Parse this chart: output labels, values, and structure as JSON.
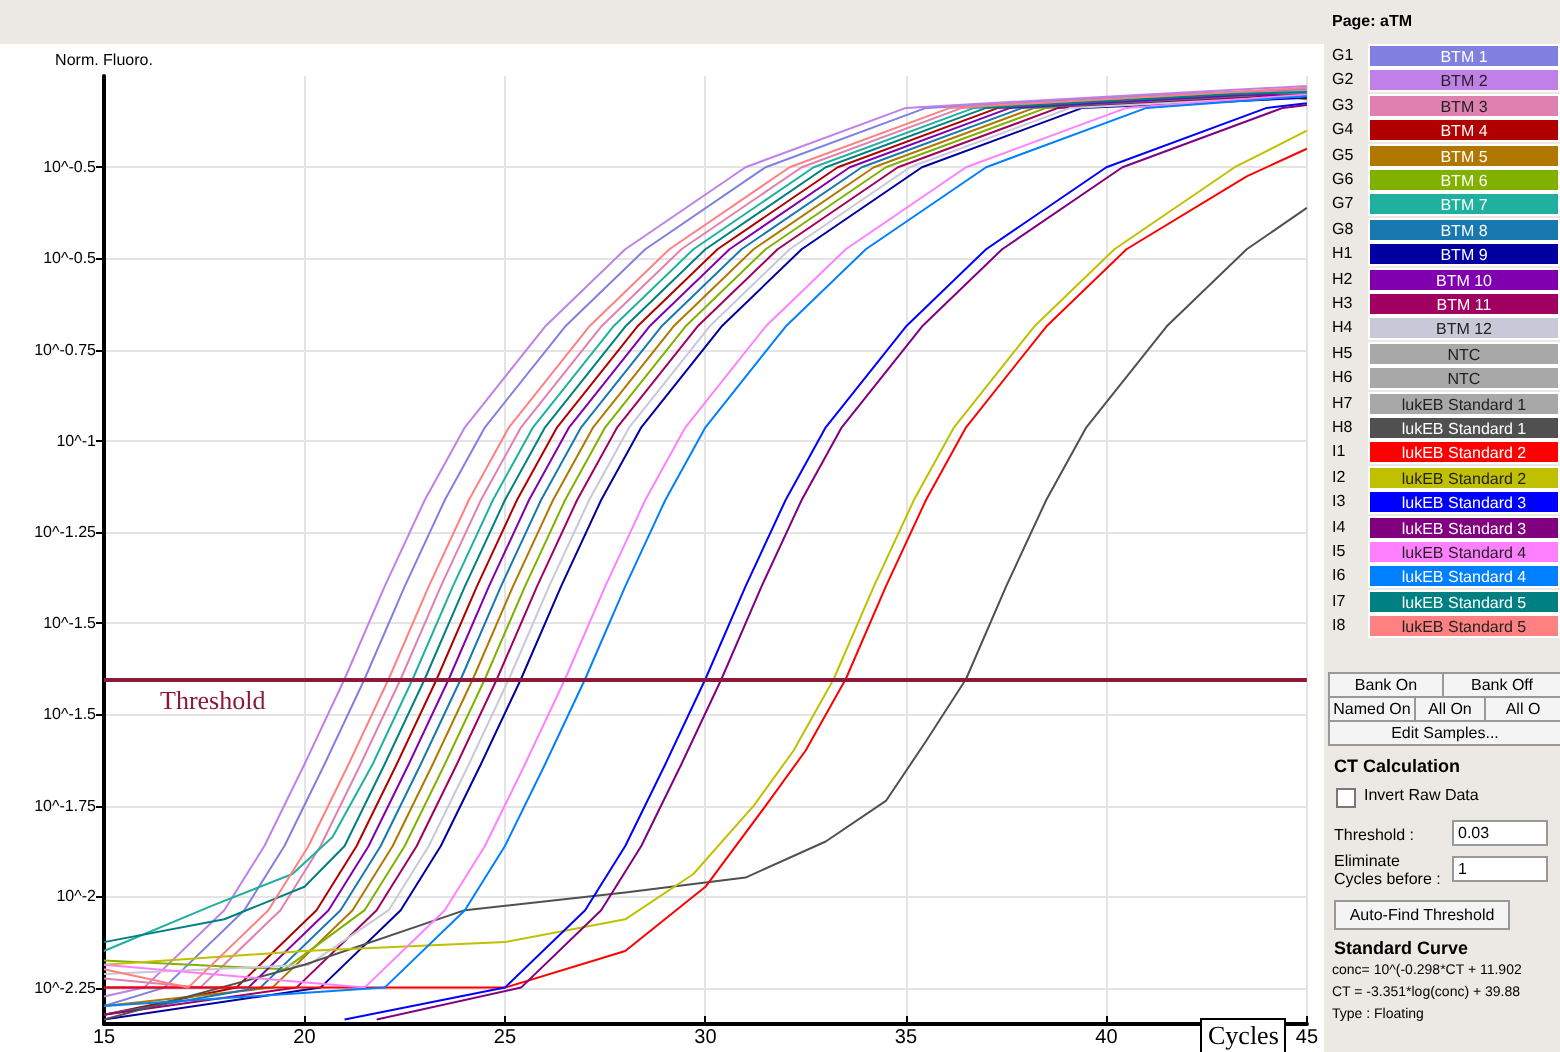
{
  "chart_data": {
    "type": "line",
    "ylabel": "Norm. Fluoro.",
    "xlabel": "Cycles",
    "xlim": [
      15,
      45
    ],
    "xticks": [
      15,
      20,
      25,
      30,
      35,
      40,
      45
    ],
    "ylim": [
      0.00525,
      0.631
    ],
    "log": true,
    "yticks": [
      {
        "value": 0.00631,
        "label": "10^-2.25"
      },
      {
        "value": 0.01,
        "label": "10^-2"
      },
      {
        "value": 0.0158,
        "label": "10^-1.75"
      },
      {
        "value": 0.0251,
        "label": "10^-1.5"
      },
      {
        "value": 0.0398,
        "label": "10^-1.5"
      },
      {
        "value": 0.0631,
        "label": "10^-1.25"
      },
      {
        "value": 0.1,
        "label": "10^-1"
      },
      {
        "value": 0.158,
        "label": "10^-0.75"
      },
      {
        "value": 0.251,
        "label": "10^-0.5"
      },
      {
        "value": 0.398,
        "label": "10^-0.5"
      }
    ],
    "grid": true,
    "legend": "right",
    "marker": "none",
    "ref_lines": [
      {
        "axis": "y",
        "value": 0.03,
        "label": "Threshold",
        "color": "#8b1a3a"
      }
    ],
    "series": [
      {
        "name": "BTM 1",
        "color": "#8080e0",
        "x": [
          15,
          16.5,
          18.5,
          19.5,
          20.5,
          21.5,
          22.5,
          23.5,
          24.5,
          26.5,
          28.5,
          31.5,
          35.5,
          41.5,
          45
        ],
        "values": [
          0.00575,
          0.00631,
          0.00933,
          0.0129,
          0.0195,
          0.03,
          0.0479,
          0.0741,
          0.107,
          0.178,
          0.263,
          0.398,
          0.537,
          0.575,
          0.59
        ]
      },
      {
        "name": "BTM 2",
        "color": "#c080e8",
        "x": [
          15,
          16,
          18,
          19,
          20,
          21,
          22,
          23,
          24,
          26,
          28,
          31,
          35,
          41,
          45
        ],
        "values": [
          0.00603,
          0.00631,
          0.00933,
          0.0129,
          0.0195,
          0.03,
          0.0479,
          0.0741,
          0.107,
          0.178,
          0.263,
          0.398,
          0.537,
          0.575,
          0.6
        ]
      },
      {
        "name": "BTM 3",
        "color": "#e080b0",
        "x": [
          15,
          17.4,
          19.4,
          20.4,
          21.4,
          22.4,
          23.4,
          24.4,
          25.4,
          27.4,
          29.4,
          32.4,
          36.4,
          42.4,
          45
        ],
        "values": [
          0.00661,
          0.00631,
          0.00933,
          0.0129,
          0.0195,
          0.03,
          0.0479,
          0.0741,
          0.107,
          0.178,
          0.263,
          0.398,
          0.537,
          0.575,
          0.585
        ]
      },
      {
        "name": "BTM 4",
        "color": "#b00000",
        "x": [
          15,
          18.3,
          20.3,
          21.3,
          22.3,
          23.3,
          24.3,
          25.3,
          26.3,
          28.3,
          30.3,
          33.3,
          37.3,
          43.3,
          45
        ],
        "values": [
          0.0055,
          0.00631,
          0.00933,
          0.0129,
          0.0195,
          0.03,
          0.0479,
          0.0741,
          0.107,
          0.178,
          0.263,
          0.398,
          0.537,
          0.575,
          0.575
        ]
      },
      {
        "name": "BTM 5",
        "color": "#b07800",
        "x": [
          15,
          19.2,
          21.2,
          22.2,
          23.2,
          24.2,
          25.2,
          26.2,
          27.2,
          29.2,
          31.2,
          34.2,
          38.2,
          44.2,
          45
        ],
        "values": [
          0.00575,
          0.00631,
          0.00933,
          0.0129,
          0.0195,
          0.03,
          0.0479,
          0.0741,
          0.107,
          0.178,
          0.263,
          0.398,
          0.537,
          0.575,
          0.56
        ]
      },
      {
        "name": "BTM 6",
        "color": "#80b000",
        "x": [
          15,
          19.5,
          21.5,
          22.5,
          23.5,
          24.5,
          25.5,
          26.5,
          27.5,
          29.5,
          31.5,
          34.5,
          38.5,
          44.5,
          45
        ],
        "values": [
          0.00724,
          0.00692,
          0.00933,
          0.0129,
          0.0195,
          0.03,
          0.0479,
          0.0741,
          0.107,
          0.178,
          0.263,
          0.398,
          0.537,
          0.575,
          0.578
        ]
      },
      {
        "name": "BTM 7",
        "color": "#20b0a0",
        "x": [
          15,
          17.7,
          19.7,
          20.7,
          21.7,
          22.7,
          23.7,
          24.7,
          25.7,
          27.7,
          29.7,
          32.7,
          36.7,
          42.7,
          45
        ],
        "values": [
          0.00759,
          0.00955,
          0.0112,
          0.0135,
          0.0195,
          0.03,
          0.0479,
          0.0741,
          0.107,
          0.178,
          0.263,
          0.398,
          0.537,
          0.575,
          0.58
        ]
      },
      {
        "name": "BTM 8",
        "color": "#1878b0",
        "x": [
          15,
          18.9,
          20.9,
          21.9,
          22.9,
          23.9,
          24.9,
          25.9,
          26.9,
          28.9,
          30.9,
          33.9,
          37.9,
          43.9,
          45
        ],
        "values": [
          0.0055,
          0.00631,
          0.00933,
          0.0129,
          0.0195,
          0.03,
          0.0479,
          0.0741,
          0.107,
          0.178,
          0.263,
          0.398,
          0.537,
          0.575,
          0.565
        ]
      },
      {
        "name": "BTM 9",
        "color": "#0000a0",
        "x": [
          15,
          20.4,
          22.4,
          23.4,
          24.4,
          25.4,
          26.4,
          27.4,
          28.4,
          30.4,
          32.4,
          35.4,
          39.4,
          45
        ],
        "values": [
          0.00537,
          0.00631,
          0.00933,
          0.0129,
          0.0195,
          0.03,
          0.0479,
          0.0741,
          0.107,
          0.178,
          0.263,
          0.398,
          0.537,
          0.565
        ]
      },
      {
        "name": "BTM 10",
        "color": "#8000b0",
        "x": [
          15,
          18.6,
          20.6,
          21.6,
          22.6,
          23.6,
          24.6,
          25.6,
          26.6,
          28.6,
          30.6,
          33.6,
          37.6,
          43.6,
          45
        ],
        "values": [
          0.00631,
          0.00631,
          0.00933,
          0.0129,
          0.0195,
          0.03,
          0.0479,
          0.0741,
          0.107,
          0.178,
          0.263,
          0.398,
          0.537,
          0.575,
          0.57
        ]
      },
      {
        "name": "BTM 11",
        "color": "#a00060",
        "x": [
          15,
          19.8,
          21.8,
          22.8,
          23.8,
          24.8,
          25.8,
          26.8,
          27.8,
          29.8,
          31.8,
          34.8,
          38.8,
          45
        ],
        "values": [
          0.0055,
          0.00631,
          0.00933,
          0.0129,
          0.0195,
          0.03,
          0.0479,
          0.0741,
          0.107,
          0.178,
          0.263,
          0.398,
          0.537,
          0.575
        ]
      },
      {
        "name": "BTM 12",
        "color": "#c8c8d8",
        "x": [
          15,
          20.1,
          22.1,
          23.1,
          24.1,
          25.1,
          26.1,
          27.1,
          28.1,
          30.1,
          32.1,
          35.1,
          39.1,
          45
        ],
        "values": [
          0.00676,
          0.00708,
          0.00933,
          0.0129,
          0.0195,
          0.03,
          0.0479,
          0.0741,
          0.107,
          0.178,
          0.263,
          0.398,
          0.537,
          0.57
        ]
      },
      {
        "name": "NTC"
      },
      {
        "name": "NTC"
      },
      {
        "name": "lukEB Standard 1"
      },
      {
        "name": "lukEB Standard 1",
        "color": "#505050",
        "x": [
          15,
          20,
          24,
          28,
          31,
          33,
          34.5,
          35.5,
          36.5,
          37.5,
          38.5,
          39.5,
          41.5,
          43.5,
          45
        ],
        "values": [
          0.00537,
          0.00708,
          0.00933,
          0.0102,
          0.011,
          0.0132,
          0.0162,
          0.0219,
          0.03,
          0.0479,
          0.0741,
          0.107,
          0.178,
          0.263,
          0.324
        ]
      },
      {
        "name": "lukEB Standard 2",
        "color": "#ff0000",
        "x": [
          15,
          20,
          25,
          28,
          30,
          31.5,
          32.5,
          33.5,
          34.5,
          35.5,
          36.5,
          38.5,
          40.5,
          43.5,
          45
        ],
        "values": [
          0.00631,
          0.00631,
          0.00631,
          0.00759,
          0.0105,
          0.0158,
          0.0209,
          0.03,
          0.0479,
          0.0741,
          0.107,
          0.178,
          0.263,
          0.38,
          0.437
        ]
      },
      {
        "name": "lukEB Standard 2",
        "color": "#c0c000",
        "x": [
          15,
          20,
          25,
          28,
          29.7,
          31.2,
          32.2,
          33.2,
          34.2,
          35.2,
          36.2,
          38.2,
          40.2,
          43.2,
          45
        ],
        "values": [
          0.00708,
          0.00759,
          0.00794,
          0.00891,
          0.0112,
          0.0158,
          0.0209,
          0.03,
          0.0479,
          0.0741,
          0.107,
          0.178,
          0.263,
          0.398,
          0.479
        ]
      },
      {
        "name": "lukEB Standard 3",
        "color": "#0000ff",
        "x": [
          21,
          25,
          27,
          28,
          29,
          30,
          31,
          32,
          33,
          35,
          37,
          40,
          44,
          45
        ],
        "values": [
          0.00537,
          0.00631,
          0.00933,
          0.0129,
          0.0195,
          0.03,
          0.0479,
          0.0741,
          0.107,
          0.178,
          0.263,
          0.398,
          0.537,
          0.55
        ]
      },
      {
        "name": "lukEB Standard 3",
        "color": "#800080",
        "x": [
          21.8,
          25.4,
          27.4,
          28.4,
          29.4,
          30.4,
          31.4,
          32.4,
          33.4,
          35.4,
          37.4,
          40.4,
          44.4,
          45
        ],
        "values": [
          0.00537,
          0.00631,
          0.00933,
          0.0129,
          0.0195,
          0.03,
          0.0479,
          0.0741,
          0.107,
          0.178,
          0.263,
          0.398,
          0.537,
          0.545
        ]
      },
      {
        "name": "lukEB Standard 4",
        "color": "#ff80ff",
        "x": [
          15,
          21.5,
          23.5,
          24.5,
          25.5,
          26.5,
          27.5,
          28.5,
          29.5,
          31.5,
          33.5,
          36.5,
          40.5,
          45
        ],
        "values": [
          0.00708,
          0.00631,
          0.00933,
          0.0129,
          0.0195,
          0.03,
          0.0479,
          0.0741,
          0.107,
          0.178,
          0.263,
          0.398,
          0.537,
          0.575
        ]
      },
      {
        "name": "lukEB Standard 4",
        "color": "#0080ff",
        "x": [
          15,
          22,
          24,
          25,
          26,
          27,
          28,
          29,
          30,
          32,
          34,
          37,
          41,
          45
        ],
        "values": [
          0.00575,
          0.00631,
          0.00933,
          0.0129,
          0.0195,
          0.03,
          0.0479,
          0.0741,
          0.107,
          0.178,
          0.263,
          0.398,
          0.537,
          0.57
        ]
      },
      {
        "name": "lukEB Standard 5",
        "color": "#008080",
        "x": [
          15,
          18,
          20,
          21,
          22,
          23,
          24,
          25,
          26,
          28,
          30,
          33,
          37,
          43,
          45
        ],
        "values": [
          0.00794,
          0.00891,
          0.0105,
          0.0129,
          0.0195,
          0.03,
          0.0479,
          0.0741,
          0.107,
          0.178,
          0.263,
          0.398,
          0.537,
          0.575,
          0.582
        ]
      },
      {
        "name": "lukEB Standard 5",
        "color": "#ff8080",
        "x": [
          15,
          17.1,
          19.1,
          20.1,
          21.1,
          22.1,
          23.1,
          24.1,
          25.1,
          27.1,
          29.1,
          32.1,
          36.1,
          42.1,
          45
        ],
        "values": [
          0.00692,
          0.00631,
          0.00933,
          0.0129,
          0.0195,
          0.03,
          0.0479,
          0.0741,
          0.107,
          0.178,
          0.263,
          0.398,
          0.537,
          0.575,
          0.595
        ]
      }
    ],
    "annotations": [
      "Page: aTM",
      "G1",
      "G2",
      "G3",
      "G4",
      "G5",
      "G6",
      "G7",
      "G8",
      "H1",
      "H2",
      "H3",
      "H4",
      "H5",
      "H6",
      "H7",
      "H8",
      "I1",
      "I2",
      "I3",
      "I4",
      "I5",
      "I6",
      "I7",
      "I8",
      "Bank On",
      "Bank Off",
      "Named On",
      "All On",
      "All O",
      "Edit Samples...",
      "CT Calculation",
      "Invert Raw Data",
      "Threshold :",
      "0.03",
      "Eliminate Cycles before :",
      "1",
      "Auto-Find Threshold",
      "Standard Curve",
      "conc= 10^(-0.298*CT + 11.902",
      "CT = -3.351*log(conc) + 39.88",
      "Type : Floating"
    ]
  }
}
